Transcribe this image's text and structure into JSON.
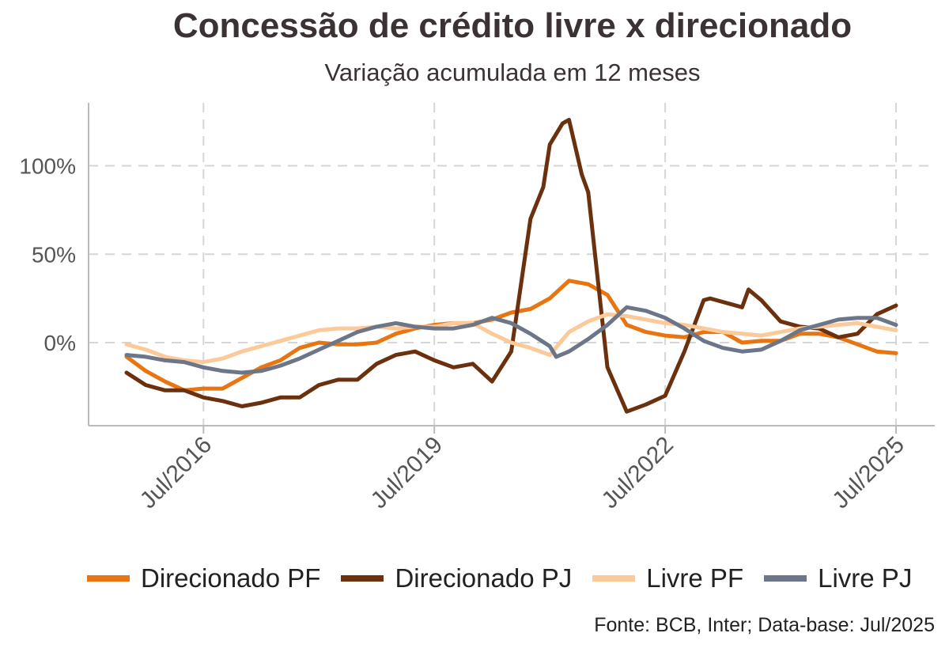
{
  "title": "Concessão de crédito livre x direcionado",
  "subtitle": "Variação acumulada em 12 meses",
  "source": "Fonte: BCB, Inter; Data-base: Jul/2025",
  "chart_data": {
    "type": "line",
    "title": "Concessão de crédito livre x direcionado",
    "subtitle": "Variação acumulada em 12 meses",
    "x_unit": "months",
    "x_range": [
      "2015-07",
      "2025-07"
    ],
    "xticks": [
      "Jul/2016",
      "Jul/2019",
      "Jul/2022",
      "Jul/2025"
    ],
    "yticks": [
      0,
      50,
      100
    ],
    "ytick_labels": [
      "0%",
      "50%",
      "100%"
    ],
    "ylim": [
      -46,
      135
    ],
    "grid": true,
    "legend_position": "bottom",
    "series": [
      {
        "name": "Direcionado PF",
        "color": "#E87511",
        "points": [
          [
            "2015-07",
            -8
          ],
          [
            "2015-10",
            -16
          ],
          [
            "2016-01",
            -22
          ],
          [
            "2016-04",
            -27
          ],
          [
            "2016-07",
            -26
          ],
          [
            "2016-10",
            -26
          ],
          [
            "2017-01",
            -20
          ],
          [
            "2017-04",
            -14
          ],
          [
            "2017-07",
            -10
          ],
          [
            "2017-10",
            -3
          ],
          [
            "2018-01",
            0
          ],
          [
            "2018-04",
            -1
          ],
          [
            "2018-07",
            -1
          ],
          [
            "2018-10",
            0
          ],
          [
            "2019-01",
            5
          ],
          [
            "2019-04",
            8
          ],
          [
            "2019-07",
            10
          ],
          [
            "2019-10",
            11
          ],
          [
            "2020-01",
            11
          ],
          [
            "2020-04",
            13
          ],
          [
            "2020-07",
            17
          ],
          [
            "2020-10",
            19
          ],
          [
            "2021-01",
            25
          ],
          [
            "2021-04",
            35
          ],
          [
            "2021-07",
            33
          ],
          [
            "2021-10",
            27
          ],
          [
            "2022-01",
            10
          ],
          [
            "2022-04",
            6
          ],
          [
            "2022-07",
            4
          ],
          [
            "2022-10",
            3
          ],
          [
            "2023-01",
            6
          ],
          [
            "2023-04",
            6
          ],
          [
            "2023-07",
            0
          ],
          [
            "2023-10",
            1
          ],
          [
            "2024-01",
            1
          ],
          [
            "2024-04",
            5
          ],
          [
            "2024-07",
            5
          ],
          [
            "2024-10",
            3
          ],
          [
            "2025-01",
            -1
          ],
          [
            "2025-04",
            -5
          ],
          [
            "2025-07",
            -6
          ]
        ]
      },
      {
        "name": "Direcionado PJ",
        "color": "#6B300D",
        "points": [
          [
            "2015-07",
            -17
          ],
          [
            "2015-10",
            -24
          ],
          [
            "2016-01",
            -27
          ],
          [
            "2016-04",
            -27
          ],
          [
            "2016-07",
            -31
          ],
          [
            "2016-10",
            -33
          ],
          [
            "2017-01",
            -36
          ],
          [
            "2017-04",
            -34
          ],
          [
            "2017-07",
            -31
          ],
          [
            "2017-10",
            -31
          ],
          [
            "2018-01",
            -24
          ],
          [
            "2018-04",
            -21
          ],
          [
            "2018-07",
            -21
          ],
          [
            "2018-10",
            -12
          ],
          [
            "2019-01",
            -7
          ],
          [
            "2019-04",
            -5
          ],
          [
            "2019-07",
            -10
          ],
          [
            "2019-10",
            -14
          ],
          [
            "2020-01",
            -12
          ],
          [
            "2020-04",
            -22
          ],
          [
            "2020-07",
            -5
          ],
          [
            "2020-10",
            70
          ],
          [
            "2020-12",
            88
          ],
          [
            "2021-01",
            112
          ],
          [
            "2021-03",
            124
          ],
          [
            "2021-04",
            126
          ],
          [
            "2021-06",
            95
          ],
          [
            "2021-07",
            85
          ],
          [
            "2021-10",
            -14
          ],
          [
            "2022-01",
            -39
          ],
          [
            "2022-04",
            -35
          ],
          [
            "2022-07",
            -30
          ],
          [
            "2022-10",
            -5
          ],
          [
            "2023-01",
            24
          ],
          [
            "2023-02",
            25
          ],
          [
            "2023-04",
            23
          ],
          [
            "2023-07",
            20
          ],
          [
            "2023-08",
            30
          ],
          [
            "2023-10",
            24
          ],
          [
            "2024-01",
            12
          ],
          [
            "2024-04",
            9
          ],
          [
            "2024-07",
            8
          ],
          [
            "2024-10",
            3
          ],
          [
            "2025-01",
            5
          ],
          [
            "2025-04",
            16
          ],
          [
            "2025-07",
            21
          ]
        ]
      },
      {
        "name": "Livre PF",
        "color": "#FCC999",
        "points": [
          [
            "2015-07",
            -1
          ],
          [
            "2015-10",
            -4
          ],
          [
            "2016-01",
            -8
          ],
          [
            "2016-04",
            -10
          ],
          [
            "2016-07",
            -11
          ],
          [
            "2016-10",
            -9
          ],
          [
            "2017-01",
            -5
          ],
          [
            "2017-04",
            -2
          ],
          [
            "2017-07",
            1
          ],
          [
            "2017-10",
            4
          ],
          [
            "2018-01",
            7
          ],
          [
            "2018-04",
            8
          ],
          [
            "2018-07",
            8
          ],
          [
            "2018-10",
            9
          ],
          [
            "2019-01",
            8
          ],
          [
            "2019-04",
            9
          ],
          [
            "2019-07",
            9
          ],
          [
            "2019-10",
            11
          ],
          [
            "2020-01",
            11
          ],
          [
            "2020-04",
            5
          ],
          [
            "2020-07",
            0
          ],
          [
            "2020-10",
            -3
          ],
          [
            "2021-01",
            -7
          ],
          [
            "2021-04",
            6
          ],
          [
            "2021-07",
            12
          ],
          [
            "2021-10",
            16
          ],
          [
            "2022-01",
            15
          ],
          [
            "2022-04",
            13
          ],
          [
            "2022-07",
            11
          ],
          [
            "2022-10",
            10
          ],
          [
            "2023-01",
            8
          ],
          [
            "2023-04",
            6
          ],
          [
            "2023-07",
            5
          ],
          [
            "2023-10",
            4
          ],
          [
            "2024-01",
            6
          ],
          [
            "2024-04",
            8
          ],
          [
            "2024-07",
            9
          ],
          [
            "2024-10",
            10
          ],
          [
            "2025-01",
            11
          ],
          [
            "2025-04",
            9
          ],
          [
            "2025-07",
            7
          ]
        ]
      },
      {
        "name": "Livre PJ",
        "color": "#6C7688",
        "points": [
          [
            "2015-07",
            -7
          ],
          [
            "2015-10",
            -8
          ],
          [
            "2016-01",
            -10
          ],
          [
            "2016-04",
            -11
          ],
          [
            "2016-07",
            -14
          ],
          [
            "2016-10",
            -16
          ],
          [
            "2017-01",
            -17
          ],
          [
            "2017-04",
            -16
          ],
          [
            "2017-07",
            -13
          ],
          [
            "2017-10",
            -9
          ],
          [
            "2018-01",
            -4
          ],
          [
            "2018-04",
            1
          ],
          [
            "2018-07",
            6
          ],
          [
            "2018-10",
            9
          ],
          [
            "2019-01",
            11
          ],
          [
            "2019-04",
            9
          ],
          [
            "2019-07",
            8
          ],
          [
            "2019-10",
            8
          ],
          [
            "2020-01",
            10
          ],
          [
            "2020-04",
            14
          ],
          [
            "2020-07",
            11
          ],
          [
            "2020-10",
            5
          ],
          [
            "2021-01",
            -2
          ],
          [
            "2021-02",
            -8
          ],
          [
            "2021-04",
            -5
          ],
          [
            "2021-07",
            2
          ],
          [
            "2021-10",
            10
          ],
          [
            "2022-01",
            20
          ],
          [
            "2022-04",
            18
          ],
          [
            "2022-07",
            14
          ],
          [
            "2022-10",
            8
          ],
          [
            "2023-01",
            1
          ],
          [
            "2023-04",
            -3
          ],
          [
            "2023-07",
            -5
          ],
          [
            "2023-10",
            -4
          ],
          [
            "2024-01",
            1
          ],
          [
            "2024-04",
            7
          ],
          [
            "2024-07",
            10
          ],
          [
            "2024-10",
            13
          ],
          [
            "2025-01",
            14
          ],
          [
            "2025-04",
            14
          ],
          [
            "2025-07",
            10
          ]
        ]
      }
    ]
  }
}
